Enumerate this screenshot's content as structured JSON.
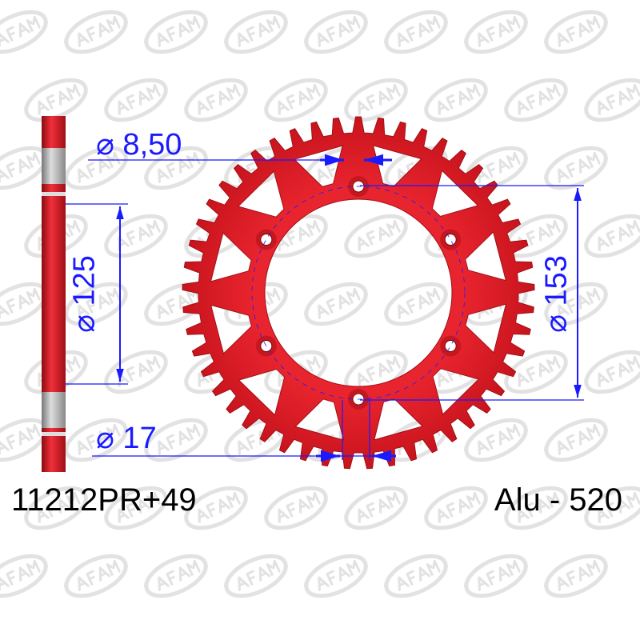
{
  "watermark": "AFAM",
  "dimensions": {
    "bolt_hole": "⌀ 8,50",
    "inner_bolt_circle": "⌀ 125",
    "outer_bolt_circle": "⌀ 153",
    "center_hole": "⌀ 17"
  },
  "part_number": "11212PR+49",
  "spec": "Alu - 520",
  "colors": {
    "sprocket": "#e0202a",
    "dimension": "#1a1aff",
    "watermark": "#e2e2e2"
  }
}
